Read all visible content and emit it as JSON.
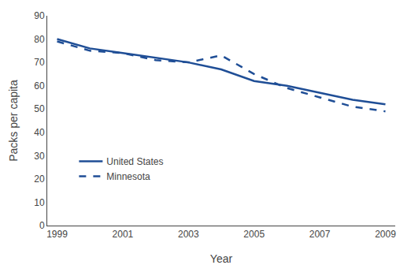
{
  "chart_data": {
    "type": "line",
    "x": [
      1999,
      2000,
      2001,
      2002,
      2003,
      2004,
      2005,
      2006,
      2007,
      2008,
      2009
    ],
    "series": [
      {
        "name": "United States",
        "color": "#1f4e96",
        "line_style": "solid",
        "values": [
          80,
          76,
          74,
          72,
          70,
          67,
          62,
          60,
          57,
          54,
          52
        ]
      },
      {
        "name": "Minnesota",
        "color": "#1f4e96",
        "line_style": "dash",
        "values": [
          79,
          75,
          74,
          71,
          70,
          73,
          65,
          59,
          55,
          51,
          49
        ]
      }
    ],
    "xlabel": "Year",
    "ylabel": "Packs per capita",
    "xlim": [
      1998.7,
      2009.3
    ],
    "xticks": [
      1999,
      2001,
      2003,
      2005,
      2007,
      2009
    ],
    "ylim": [
      0,
      90
    ],
    "yticks": [
      0,
      10,
      20,
      30,
      40,
      50,
      60,
      70,
      80,
      90
    ],
    "grid": false,
    "legend": "lower left"
  }
}
